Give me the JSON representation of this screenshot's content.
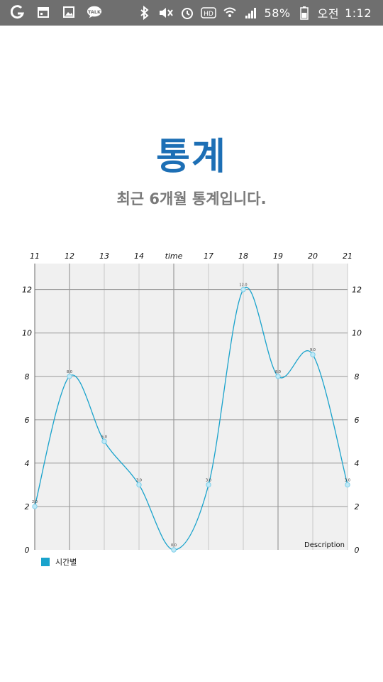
{
  "status_bar": {
    "battery": "58%",
    "ampm": "오전",
    "time": "1:12",
    "icons": [
      "g-app-icon",
      "calendar-icon",
      "gallery-icon",
      "talk-icon",
      "bluetooth-icon",
      "mute-icon",
      "alarm-icon",
      "hd-icon",
      "wifi-icon",
      "signal-icon",
      "battery-icon"
    ],
    "talk_label": "TALK",
    "hd_label": "HD"
  },
  "header": {
    "title": "통계",
    "subtitle": "최근 6개월 통계입니다."
  },
  "colors": {
    "title": "#1d6fb5",
    "series": "#1aa3cc",
    "plot_bg": "#f0f0f0",
    "grid": "#9a9a9a"
  },
  "chart_data": {
    "type": "line",
    "title": "",
    "x_tick_labels": [
      "11",
      "12",
      "13",
      "14",
      "time",
      "17",
      "18",
      "19",
      "20",
      "21"
    ],
    "x": [
      11,
      12,
      13,
      14,
      15,
      16,
      17,
      18,
      19,
      20
    ],
    "series": [
      {
        "name": "시간별",
        "values": [
          2,
          8,
          5,
          3,
          0,
          3,
          12,
          8,
          9,
          3
        ],
        "point_labels": [
          "2.0",
          "8.0",
          "5.0",
          "3.0",
          "0.0",
          "3.0",
          "12.0",
          "8.0",
          "9.0",
          "3.0"
        ]
      }
    ],
    "y_ticks": [
      0,
      2,
      4,
      6,
      8,
      10,
      12
    ],
    "ylim": [
      0,
      13.2
    ],
    "description": "Description",
    "smooth": true,
    "grid": true,
    "legend_position": "bottom-left"
  }
}
